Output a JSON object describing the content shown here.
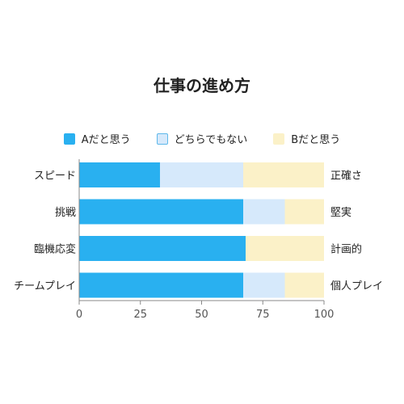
{
  "chart_data": {
    "type": "bar",
    "orientation": "horizontal",
    "stacked": true,
    "title": "仕事の進め方",
    "categories": [
      "スピード",
      "挑戦",
      "臨機応変",
      "チームプレイ"
    ],
    "right_labels": [
      "正確さ",
      "堅実",
      "計画的",
      "個人プレイ"
    ],
    "series": [
      {
        "name": "Aだと思う",
        "values": [
          33,
          67,
          68,
          67
        ]
      },
      {
        "name": "どちらでもない",
        "values": [
          34,
          17,
          0,
          17
        ]
      },
      {
        "name": "Bだと思う",
        "values": [
          33,
          16,
          32,
          16
        ]
      }
    ],
    "xlim": [
      0,
      100
    ],
    "xticks": [
      0,
      25,
      50,
      75,
      100
    ],
    "legend_position": "top",
    "grid": false
  },
  "colors": {
    "series": [
      "#29b0f0",
      "#d6e9fb",
      "#fbf1c8"
    ],
    "swatch_borders": [
      "#29b0f0",
      "#5db8ea",
      "#fbf1c8"
    ]
  }
}
